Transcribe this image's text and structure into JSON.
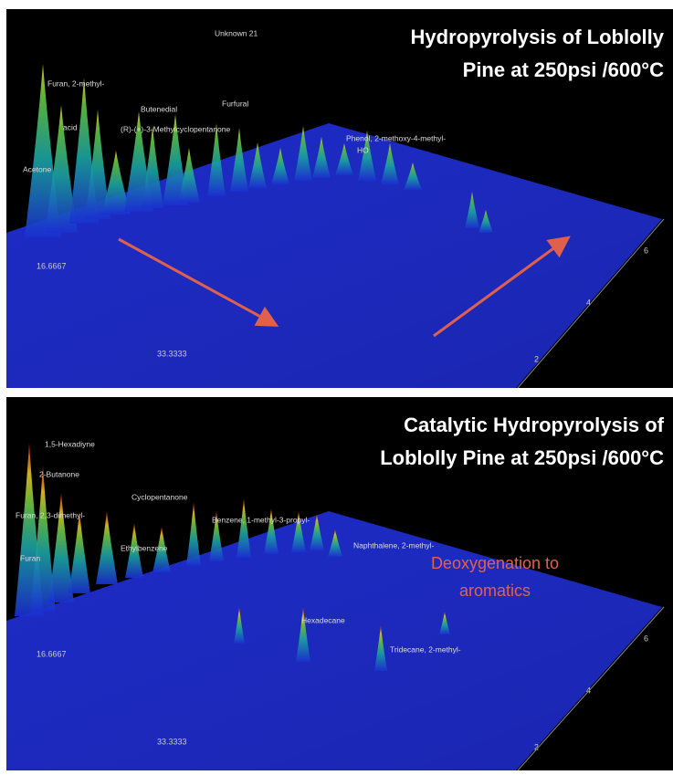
{
  "panels": [
    {
      "title": [
        "Hydropyrolysis of Loblolly",
        "Pine at 250psi /600°C"
      ],
      "labels": [
        "Unknown 21",
        "Furan, 2-methyl-",
        "Butenedial",
        "Furfural",
        "acid",
        "Acetone",
        "(R)-(+)-3-Methylcyclopentanone",
        "Phenol, 2-methoxy-4-methyl-",
        "HO"
      ],
      "axis_labels": [
        "16.6667",
        "33.3333",
        "2",
        "4",
        "6"
      ]
    },
    {
      "title": [
        "Catalytic Hydropyrolysis of",
        "Loblolly Pine at 250psi /600°C"
      ],
      "labels": [
        "1,5-Hexadiyne",
        "2-Butanone",
        "Furan, 2,3-dimethyl-",
        "Cyclopentanone",
        "Ethylbenzene",
        "Benzene, 1-methyl-3-propyl-",
        "Naphthalene, 2-methyl-",
        "Furan",
        "Hexadecane",
        "Tridecane, 2-methyl-"
      ],
      "annotation": [
        "Deoxygenation to",
        "aromatics"
      ],
      "axis_labels": [
        "16.6667",
        "33.3333",
        "2",
        "4",
        "6"
      ]
    }
  ]
}
